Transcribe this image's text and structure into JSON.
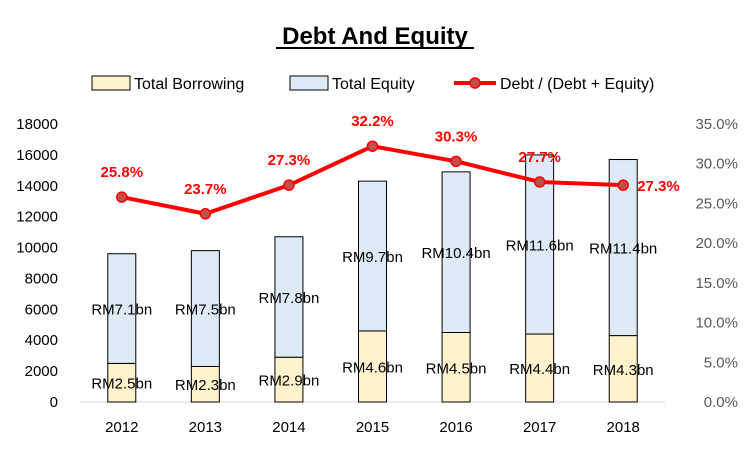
{
  "chart_data": {
    "type": "bar",
    "title": "Debt And Equity",
    "categories": [
      "2012",
      "2013",
      "2014",
      "2015",
      "2016",
      "2017",
      "2018"
    ],
    "series": [
      {
        "name": "Total Borrowing",
        "kind": "stacked-bar",
        "values": [
          2500,
          2300,
          2900,
          4600,
          4500,
          4400,
          4300
        ],
        "labels": [
          "RM2.5bn",
          "RM2.3bn",
          "RM2.9bn",
          "RM4.6bn",
          "RM4.5bn",
          "RM4.4bn",
          "RM4.3bn"
        ],
        "color": "#FFF2CC"
      },
      {
        "name": "Total Equity",
        "kind": "stacked-bar",
        "values": [
          7100,
          7500,
          7800,
          9700,
          10400,
          11600,
          11400
        ],
        "labels": [
          "RM7.1bn",
          "RM7.5bn",
          "RM7.8bn",
          "RM9.7bn",
          "RM10.4bn",
          "RM11.6bn",
          "RM11.4bn"
        ],
        "color": "#DEEBF7"
      },
      {
        "name": "Debt / (Debt + Equity)",
        "kind": "line",
        "axis": "right",
        "values": [
          25.8,
          23.7,
          27.3,
          32.2,
          30.3,
          27.7,
          27.3
        ],
        "labels": [
          "25.8%",
          "23.7%",
          "27.3%",
          "32.2%",
          "30.3%",
          "27.7%",
          "27.3%"
        ],
        "color": "#FF0000"
      }
    ],
    "y_left": {
      "lim": [
        0,
        18000
      ],
      "ticks": [
        0,
        2000,
        4000,
        6000,
        8000,
        10000,
        12000,
        14000,
        16000,
        18000
      ],
      "tick_labels": [
        "0",
        "2000",
        "4000",
        "6000",
        "8000",
        "10000",
        "12000",
        "14000",
        "16000",
        "18000"
      ]
    },
    "y_right": {
      "lim": [
        0,
        35
      ],
      "ticks": [
        0,
        5,
        10,
        15,
        20,
        25,
        30,
        35
      ],
      "tick_labels": [
        "0.0%",
        "5.0%",
        "10.0%",
        "15.0%",
        "20.0%",
        "25.0%",
        "30.0%",
        "35.0%"
      ]
    },
    "xlabel": "",
    "ylabel": "",
    "grid": false,
    "legend_position": "top"
  }
}
